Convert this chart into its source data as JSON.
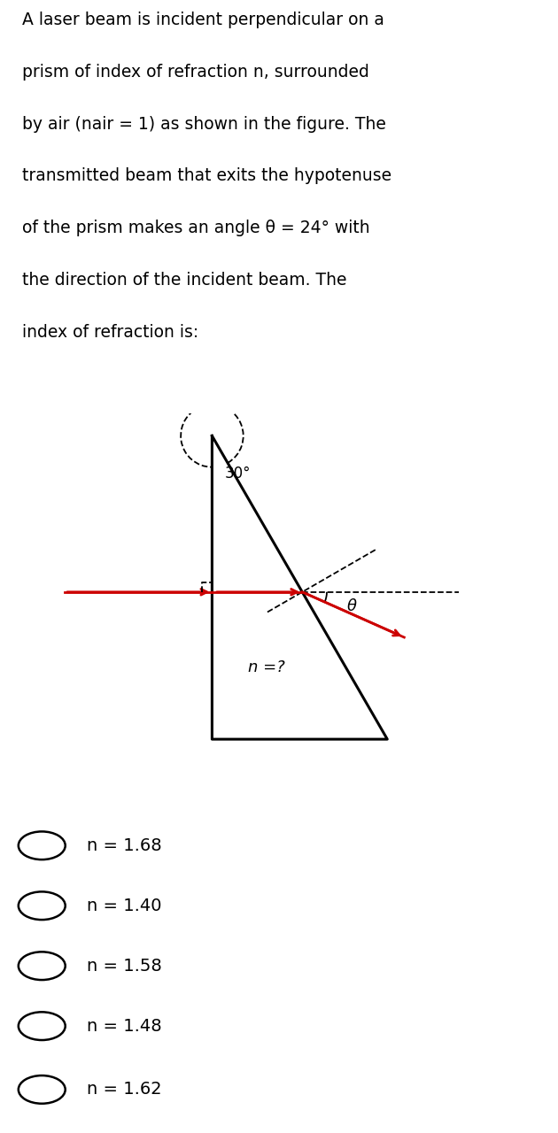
{
  "question_lines": [
    "A laser beam is incident perpendicular on a",
    "prism of index of refraction n, surrounded",
    "by air (nair = 1) as shown in the figure. The",
    "transmitted beam that exits the hypotenuse",
    "of the prism makes an angle θ = 24° with",
    "the direction of the incident beam. The",
    "index of refraction is:"
  ],
  "options": [
    "n = 1.68",
    "n = 1.40",
    "n = 1.58",
    "n = 1.48",
    "n = 1.62"
  ],
  "bg_color": "#ffffff",
  "text_color": "#000000",
  "prism_color": "#000000",
  "beam_color": "#cc0000",
  "angle_label": "30°",
  "theta_label": "θ",
  "n_label": "n =?",
  "theta_deg": 24
}
